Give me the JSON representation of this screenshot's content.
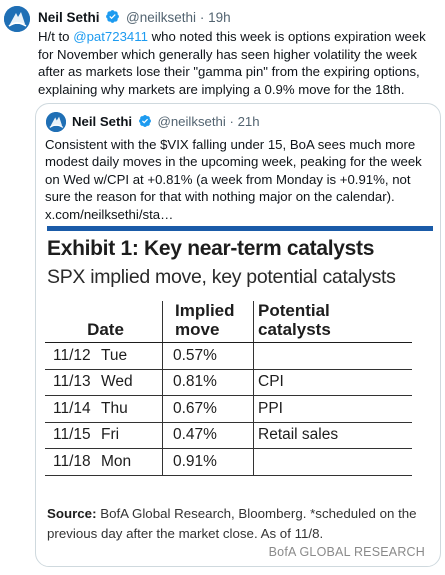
{
  "tweet": {
    "author_name": "Neil Sethi",
    "handle": "@neilksethi",
    "separator": "·",
    "time": "19h",
    "text_before_mention": "H/t to ",
    "mention": "@pat723411",
    "text_after_mention": " who noted this week is options expiration week for November which generally has seen higher volatility the week after as markets lose their \"gamma pin\" from the expiring options, explaining why markets are implying a 0.9% move for the 18th."
  },
  "quote": {
    "author_name": "Neil Sethi",
    "handle": "@neilksethi",
    "separator": "·",
    "time": "21h",
    "text": "Consistent with the $VIX falling under 15, BoA sees much more modest daily moves in the upcoming week, peaking for the week on Wed w/CPI at +0.81% (a week from Monday is +0.91%, not sure the reason for that with nothing major on the calendar).  x.com/neilksethi/sta…"
  },
  "exhibit": {
    "title": "Exhibit 1: Key near-term catalysts",
    "subtitle": "SPX implied move, key potential catalysts",
    "headers": {
      "date": "Date",
      "move_line1": "Implied",
      "move_line2": "move",
      "catalysts_line1": "Potential",
      "catalysts_line2": "catalysts"
    },
    "rows": [
      {
        "date": "11/12",
        "day": "Tue",
        "move": "0.57%",
        "catalyst": ""
      },
      {
        "date": "11/13",
        "day": "Wed",
        "move": "0.81%",
        "catalyst": "CPI"
      },
      {
        "date": "11/14",
        "day": "Thu",
        "move": "0.67%",
        "catalyst": "PPI"
      },
      {
        "date": "11/15",
        "day": "Fri",
        "move": "0.47%",
        "catalyst": "Retail sales"
      },
      {
        "date": "11/18",
        "day": "Mon",
        "move": "0.91%",
        "catalyst": ""
      }
    ],
    "source_label": "Source:",
    "source_text": " BofA Global Research, Bloomberg. *scheduled on the previous day after the market close. As of 11/8.",
    "brand": "BofA GLOBAL RESEARCH"
  },
  "colors": {
    "link": "#1d9bf0",
    "verified": "#1d9bf0",
    "exhibit_bar": "#1a5ba8",
    "avatar": "#1f6fb5"
  },
  "icons": {
    "avatar": "avatar-logo-icon",
    "verified": "verified-badge-icon"
  }
}
